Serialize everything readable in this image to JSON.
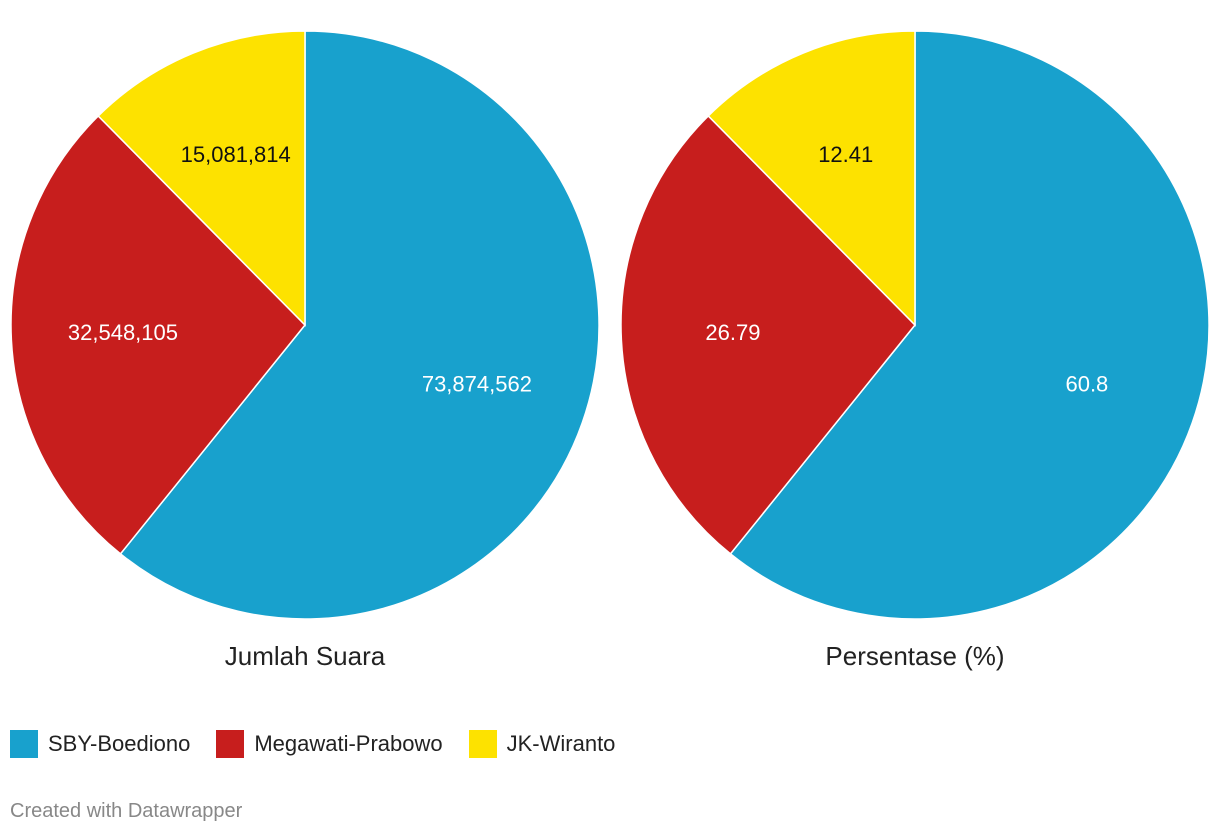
{
  "chart_data": [
    {
      "type": "pie",
      "title": "Jumlah Suara",
      "categories": [
        "SBY-Boediono",
        "Megawati-Prabowo",
        "JK-Wiranto"
      ],
      "values": [
        73874562,
        32548105,
        15081814
      ],
      "value_labels": [
        "73,874,562",
        "32,548,105",
        "15,081,814"
      ],
      "label_colors": [
        "#ffffff",
        "#ffffff",
        "#111111"
      ]
    },
    {
      "type": "pie",
      "title": "Persentase (%)",
      "categories": [
        "SBY-Boediono",
        "Megawati-Prabowo",
        "JK-Wiranto"
      ],
      "values": [
        60.8,
        26.79,
        12.41
      ],
      "value_labels": [
        "60.8",
        "26.79",
        "12.41"
      ],
      "label_colors": [
        "#ffffff",
        "#ffffff",
        "#111111"
      ]
    }
  ],
  "colors": [
    "#18a1cd",
    "#c71e1d",
    "#fde200"
  ],
  "legend": {
    "placement": "bottom-left",
    "items": [
      {
        "label": "SBY-Boediono",
        "color": "#18a1cd"
      },
      {
        "label": "Megawati-Prabowo",
        "color": "#c71e1d"
      },
      {
        "label": "JK-Wiranto",
        "color": "#fde200"
      }
    ]
  },
  "footer": {
    "credit": "Created with Datawrapper"
  }
}
